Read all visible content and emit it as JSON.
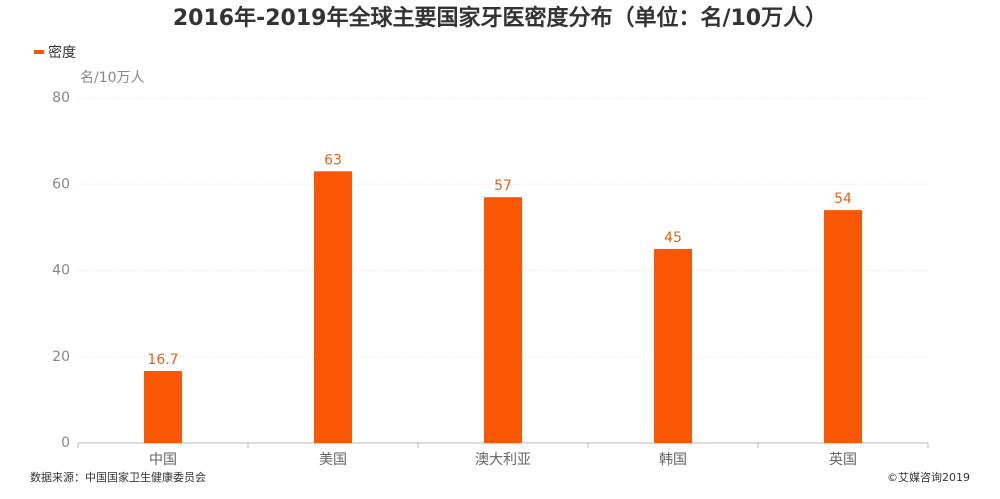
{
  "chart_data": {
    "type": "bar",
    "title": "2016年-2019年全球主要国家牙医密度分布（单位：名/10万人）",
    "y_label": "名/10万人",
    "categories": [
      "中国",
      "美国",
      "澳大利亚",
      "韩国",
      "英国"
    ],
    "series": [
      {
        "name": "密度",
        "color": "#fa5705",
        "values": [
          16.7,
          63,
          57,
          45,
          54
        ]
      }
    ],
    "ylim": [
      0,
      80
    ],
    "yticks": [
      0,
      20,
      40,
      60,
      80
    ],
    "grid": true,
    "legend": "top-left",
    "source": "数据来源：中国国家卫生健康委员会",
    "credit": "©艾媒咨询2019"
  }
}
